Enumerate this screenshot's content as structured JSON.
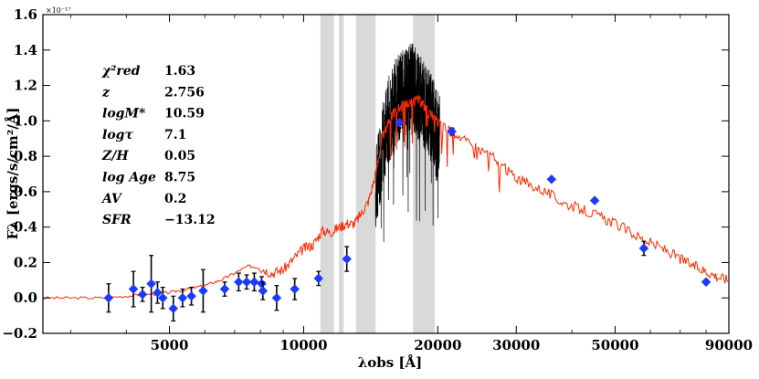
{
  "chart_data": {
    "type": "scatter",
    "xlabel": "λobs [Å]",
    "ylabel": "Fλ [ergs/s/cm²/Å]",
    "y_exponent": "×10⁻¹⁷",
    "xscale": "log",
    "xlim": [
      2600,
      90000
    ],
    "ylim": [
      -0.2,
      1.6
    ],
    "x_ticks": [
      5000,
      10000,
      20000,
      30000,
      50000,
      90000
    ],
    "y_ticks": [
      -0.2,
      0.0,
      0.2,
      0.4,
      0.6,
      0.8,
      1.0,
      1.2,
      1.4,
      1.6
    ],
    "x_tick_labels": [
      "5000",
      "10000",
      "20000",
      "30000",
      "50000",
      "90000"
    ],
    "y_tick_labels": [
      "−0.2",
      "0.0",
      "0.2",
      "0.4",
      "0.6",
      "0.8",
      "1.0",
      "1.2",
      "1.4",
      "1.6"
    ],
    "grid": false,
    "masked_regions": [
      [
        10900,
        11700
      ],
      [
        12000,
        12300
      ],
      [
        13100,
        14500
      ],
      [
        17600,
        19700
      ]
    ],
    "annotations": [
      {
        "name": "χ²red",
        "value": "1.63"
      },
      {
        "name": "z",
        "value": "2.756"
      },
      {
        "name": "logM*",
        "value": "10.59"
      },
      {
        "name": "logτ",
        "value": "7.1"
      },
      {
        "name": "Z/H",
        "value": "0.05"
      },
      {
        "name": "log Age",
        "value": "8.75"
      },
      {
        "name": "AV",
        "value": "0.2"
      },
      {
        "name": "SFR",
        "value": "−13.12"
      }
    ],
    "series": [
      {
        "kind": "photometry",
        "color": "#1c3aff",
        "marker": "diamond",
        "points": [
          {
            "x": 3650,
            "y": 0.0,
            "err": 0.08
          },
          {
            "x": 4150,
            "y": 0.05,
            "err": 0.1
          },
          {
            "x": 4350,
            "y": 0.02,
            "err": 0.04
          },
          {
            "x": 4550,
            "y": 0.08,
            "err": 0.16
          },
          {
            "x": 4700,
            "y": 0.03,
            "err": 0.06
          },
          {
            "x": 4830,
            "y": 0.0,
            "err": 0.06
          },
          {
            "x": 5100,
            "y": -0.06,
            "err": 0.07
          },
          {
            "x": 5350,
            "y": 0.0,
            "err": 0.05
          },
          {
            "x": 5600,
            "y": 0.01,
            "err": 0.05
          },
          {
            "x": 5950,
            "y": 0.04,
            "err": 0.12
          },
          {
            "x": 6650,
            "y": 0.05,
            "err": 0.04
          },
          {
            "x": 7150,
            "y": 0.09,
            "err": 0.05
          },
          {
            "x": 7450,
            "y": 0.09,
            "err": 0.04
          },
          {
            "x": 7750,
            "y": 0.09,
            "err": 0.05
          },
          {
            "x": 8050,
            "y": 0.08,
            "err": 0.04
          },
          {
            "x": 8100,
            "y": 0.04,
            "err": 0.05
          },
          {
            "x": 8700,
            "y": 0.0,
            "err": 0.07
          },
          {
            "x": 9550,
            "y": 0.05,
            "err": 0.06
          },
          {
            "x": 10800,
            "y": 0.11,
            "err": 0.04
          },
          {
            "x": 12500,
            "y": 0.22,
            "err": 0.07
          },
          {
            "x": 16400,
            "y": 0.99,
            "err": 0.03
          },
          {
            "x": 21500,
            "y": 0.94,
            "err": 0.02
          },
          {
            "x": 36000,
            "y": 0.67,
            "err": 0.01
          },
          {
            "x": 45000,
            "y": 0.55,
            "err": 0.01
          },
          {
            "x": 58000,
            "y": 0.28,
            "err": 0.04
          },
          {
            "x": 80000,
            "y": 0.09,
            "err": 0.01
          }
        ]
      },
      {
        "kind": "model",
        "color": "#ff2a00",
        "points": [
          [
            2600,
            0.0
          ],
          [
            3000,
            0.0
          ],
          [
            3500,
            0.0
          ],
          [
            4000,
            0.01
          ],
          [
            4500,
            0.02
          ],
          [
            5000,
            0.03
          ],
          [
            5500,
            0.05
          ],
          [
            6000,
            0.07
          ],
          [
            6500,
            0.1
          ],
          [
            7000,
            0.14
          ],
          [
            7500,
            0.18
          ],
          [
            8000,
            0.17
          ],
          [
            8500,
            0.14
          ],
          [
            9000,
            0.16
          ],
          [
            9500,
            0.22
          ],
          [
            10000,
            0.28
          ],
          [
            10500,
            0.3
          ],
          [
            11000,
            0.38
          ],
          [
            11500,
            0.37
          ],
          [
            12000,
            0.4
          ],
          [
            12500,
            0.42
          ],
          [
            13000,
            0.42
          ],
          [
            13500,
            0.48
          ],
          [
            14000,
            0.55
          ],
          [
            14500,
            0.7
          ],
          [
            15000,
            0.9
          ],
          [
            15500,
            1.0
          ],
          [
            16000,
            1.05
          ],
          [
            16500,
            1.08
          ],
          [
            17000,
            1.1
          ],
          [
            17500,
            1.1
          ],
          [
            18000,
            1.12
          ],
          [
            18500,
            1.1
          ],
          [
            19000,
            1.05
          ],
          [
            20000,
            1.0
          ],
          [
            21000,
            0.95
          ],
          [
            22000,
            0.93
          ],
          [
            24000,
            0.85
          ],
          [
            26000,
            0.82
          ],
          [
            28000,
            0.74
          ],
          [
            30000,
            0.68
          ],
          [
            32000,
            0.64
          ],
          [
            35000,
            0.6
          ],
          [
            38000,
            0.54
          ],
          [
            42000,
            0.5
          ],
          [
            46000,
            0.46
          ],
          [
            50000,
            0.42
          ],
          [
            55000,
            0.36
          ],
          [
            60000,
            0.31
          ],
          [
            65000,
            0.27
          ],
          [
            70000,
            0.22
          ],
          [
            75000,
            0.18
          ],
          [
            80000,
            0.15
          ],
          [
            85000,
            0.12
          ],
          [
            90000,
            0.1
          ]
        ]
      },
      {
        "kind": "observed-spectrum",
        "color": "#000000",
        "xrange": [
          14500,
          20200
        ],
        "center": [
          [
            14500,
            0.6
          ],
          [
            15000,
            0.85
          ],
          [
            15500,
            1.0
          ],
          [
            16000,
            1.1
          ],
          [
            16500,
            1.15
          ],
          [
            17000,
            1.18
          ],
          [
            17500,
            1.2
          ],
          [
            18000,
            1.15
          ],
          [
            18500,
            1.1
          ],
          [
            19000,
            1.05
          ],
          [
            19500,
            1.0
          ],
          [
            20200,
            0.9
          ]
        ],
        "scatter": 0.25
      }
    ]
  },
  "colors": {
    "model": "#ff2a00",
    "photometry": "#1c3aff",
    "mask": "#d9d9d9",
    "annotation_value": "#ff2a00"
  }
}
